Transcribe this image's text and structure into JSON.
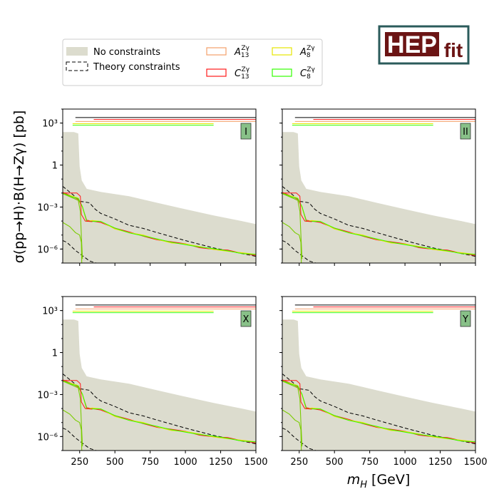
{
  "chart_data": {
    "type": "line",
    "ylabel": "σ(pp→H)·B(H→Zγ) [pb]",
    "xlabel": "m_H [GeV]",
    "xlim": [
      130,
      1500
    ],
    "ylim_log10": [
      -7,
      4
    ],
    "x_ticks": [
      250,
      500,
      750,
      1000,
      1250,
      1500
    ],
    "y_ticks": [
      {
        "exp": 3,
        "label": "10^3"
      },
      {
        "exp": 0,
        "label": "1"
      },
      {
        "exp": -3,
        "label": "10^-3"
      },
      {
        "exp": -6,
        "label": "10^-6"
      }
    ],
    "logo": {
      "text_main": "HEP",
      "text_sub": "fit"
    },
    "legend": {
      "fill_label": "No constraints",
      "dashed_label": "Theory constraints",
      "series": [
        {
          "base": "A",
          "sub": "13",
          "sup": "Zγ",
          "color": "#f4a06a"
        },
        {
          "base": "C",
          "sub": "13",
          "sup": "Zγ",
          "color": "#ff1a1a"
        },
        {
          "base": "A",
          "sub": "8",
          "sup": "Zγ",
          "color": "#e6e600"
        },
        {
          "base": "C",
          "sub": "8",
          "sup": "Zγ",
          "color": "#33ff00"
        }
      ]
    },
    "colors": {
      "fill": "#dcdcce",
      "dashed": "#000000",
      "panel_label_bg": "#88c088"
    },
    "panels": [
      {
        "label": "I"
      },
      {
        "label": "II"
      },
      {
        "label": "X"
      },
      {
        "label": "Y"
      }
    ],
    "curves": {
      "fill_upper": [
        [
          130,
          230
        ],
        [
          210,
          230
        ],
        [
          240,
          180
        ],
        [
          250,
          0.8
        ],
        [
          265,
          0.08
        ],
        [
          300,
          0.02
        ],
        [
          400,
          0.012
        ],
        [
          600,
          0.006
        ],
        [
          800,
          0.002
        ],
        [
          1000,
          0.0007
        ],
        [
          1200,
          0.00025
        ],
        [
          1400,
          0.0001
        ],
        [
          1500,
          6e-05
        ]
      ],
      "dashed_upper": [
        [
          130,
          0.03
        ],
        [
          200,
          0.008
        ],
        [
          260,
          0.0025
        ],
        [
          320,
          0.002
        ],
        [
          360,
          0.0007
        ],
        [
          400,
          0.00035
        ],
        [
          500,
          0.00014
        ],
        [
          600,
          5e-05
        ],
        [
          700,
          3e-05
        ],
        [
          800,
          1.5e-05
        ],
        [
          1000,
          4e-06
        ],
        [
          1200,
          1.2e-06
        ],
        [
          1500,
          3e-07
        ]
      ],
      "dashed_lower": [
        [
          130,
          4e-06
        ],
        [
          160,
          3e-06
        ],
        [
          220,
          8e-07
        ],
        [
          260,
          4e-07
        ],
        [
          320,
          1.4e-07
        ],
        [
          400,
          8e-08
        ],
        [
          1500,
          8e-08
        ]
      ],
      "signal_main": [
        [
          130,
          0.01
        ],
        [
          190,
          0.006
        ],
        [
          240,
          0.004
        ],
        [
          270,
          0.001
        ],
        [
          300,
          0.0001
        ],
        [
          340,
          0.0001
        ],
        [
          400,
          9e-05
        ],
        [
          500,
          3e-05
        ],
        [
          600,
          1.5e-05
        ],
        [
          700,
          9e-06
        ],
        [
          800,
          5e-06
        ],
        [
          900,
          3e-06
        ],
        [
          1000,
          2.2e-06
        ],
        [
          1100,
          1.4e-06
        ],
        [
          1200,
          1e-06
        ],
        [
          1300,
          7.5e-07
        ],
        [
          1400,
          5e-07
        ],
        [
          1500,
          4e-07
        ]
      ],
      "signal_low": [
        [
          130,
          8e-05
        ],
        [
          180,
          4e-05
        ],
        [
          220,
          1.5e-05
        ],
        [
          250,
          1e-05
        ],
        [
          262,
          3e-06
        ]
      ],
      "signal_drop": [
        [
          262,
          3e-06
        ],
        [
          265,
          1e-07
        ]
      ],
      "upper_edge_hi": [
        [
          350,
          0.00012
        ],
        [
          400,
          0.0001
        ]
      ],
      "red_hi": [
        [
          130,
          0.01
        ],
        [
          230,
          0.01
        ],
        [
          255,
          0.006
        ],
        [
          262,
          0.0003
        ],
        [
          290,
          0.0001
        ],
        [
          340,
          9e-05
        ]
      ],
      "green_hi": [
        [
          130,
          0.009
        ],
        [
          190,
          0.005
        ],
        [
          240,
          0.003
        ],
        [
          255,
          0.0005
        ],
        [
          262,
          1e-05
        ],
        [
          270,
          2e-07
        ]
      ],
      "top_lines": [
        {
          "from": 220,
          "to": 1500,
          "value": 2500,
          "color": "#000000"
        },
        {
          "from": 350,
          "to": 1500,
          "value": 1800,
          "color": "#ff1a1a"
        },
        {
          "from": 220,
          "to": 1500,
          "value": 1300,
          "color": "#f4a06a"
        },
        {
          "from": 200,
          "to": 1200,
          "value": 900,
          "color": "#e6e600"
        },
        {
          "from": 200,
          "to": 1200,
          "value": 700,
          "color": "#33ff00"
        }
      ]
    }
  }
}
